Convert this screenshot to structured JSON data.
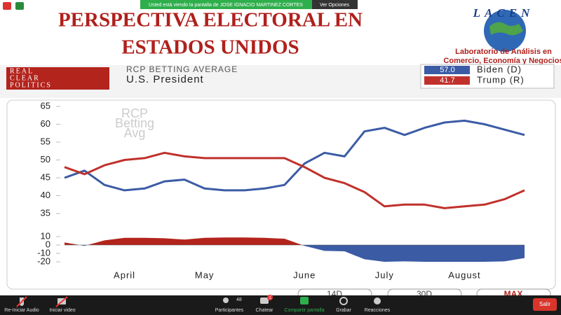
{
  "zoom_banner": {
    "text": "Usted está viendo la pantalla de JOSE IGNACIO MARTINEZ CORTES",
    "options": "Ver Opciones"
  },
  "slide": {
    "title_lines": [
      "PERSPECTIVA ELECTORAL EN",
      "ESTADOS UNIDOS"
    ],
    "logo": "LACEN",
    "org_lines": [
      "Laboratorio de Análisis en",
      "Comercio, Economía y Negocios"
    ]
  },
  "rcp": {
    "logo_lines": [
      "REAL",
      "CLEAR",
      "POLITICS"
    ],
    "heading": "RCP BETTING AVERAGE",
    "subheading": "U.S. President",
    "watermark_lines": [
      "RCP",
      "Betting",
      "Avg"
    ],
    "range_buttons": [
      "14D",
      "30D",
      "MAX"
    ]
  },
  "chart_data": [
    {
      "type": "line",
      "categories": [
        null,
        null,
        null,
        "April",
        null,
        null,
        null,
        "May",
        null,
        null,
        null,
        null,
        "June",
        null,
        null,
        null,
        "July",
        null,
        null,
        null,
        "August",
        null,
        null,
        null
      ],
      "series": [
        {
          "name": "Biden (D)",
          "color": "#3b5ba5",
          "legend_value": {
            "value": 57,
            "label": "57.0"
          },
          "values": [
            45,
            47,
            43,
            41.5,
            42,
            44,
            44.5,
            42,
            41.5,
            41.5,
            42,
            43,
            49,
            52,
            51,
            58,
            59,
            57,
            59,
            60.5,
            61,
            60,
            58.5,
            57
          ]
        },
        {
          "name": "Trump (R)",
          "color": "#c0312b",
          "legend_value": {
            "value": 41.7,
            "label": "41.7"
          },
          "values": [
            48,
            46,
            48.5,
            50,
            50.5,
            52,
            51,
            50.5,
            50.5,
            50.5,
            50.5,
            50.5,
            48,
            45,
            43.5,
            41,
            37,
            37.5,
            37.5,
            36.5,
            37,
            37.5,
            39,
            41.5
          ]
        }
      ],
      "ylim": [
        35,
        65
      ],
      "yticks": [
        35,
        40,
        45,
        50,
        55,
        60,
        65
      ]
    },
    {
      "type": "area",
      "values": [
        3,
        -1,
        5.5,
        8.5,
        8.5,
        8,
        6.5,
        8.5,
        9,
        9,
        8.5,
        7.5,
        -1,
        -7,
        -7.5,
        -17,
        -20,
        -19.5,
        -20,
        -20,
        -20,
        -20,
        -19.5,
        -15.5
      ],
      "positive_color": "#b3241d",
      "negative_color": "#3b5ba5",
      "ylim": [
        -20,
        10
      ],
      "yticks": [
        -20,
        -10,
        0,
        10
      ]
    }
  ],
  "toolbar": {
    "audio": "Re-Iniciar Audio",
    "video": "Iniciar video",
    "participants": "Participantes",
    "participants_count": "48",
    "chat": "Chatear",
    "chat_badge": "1",
    "share": "Compartir pantalla",
    "record": "Grabar",
    "reactions": "Reacciones",
    "leave": "Salir"
  }
}
